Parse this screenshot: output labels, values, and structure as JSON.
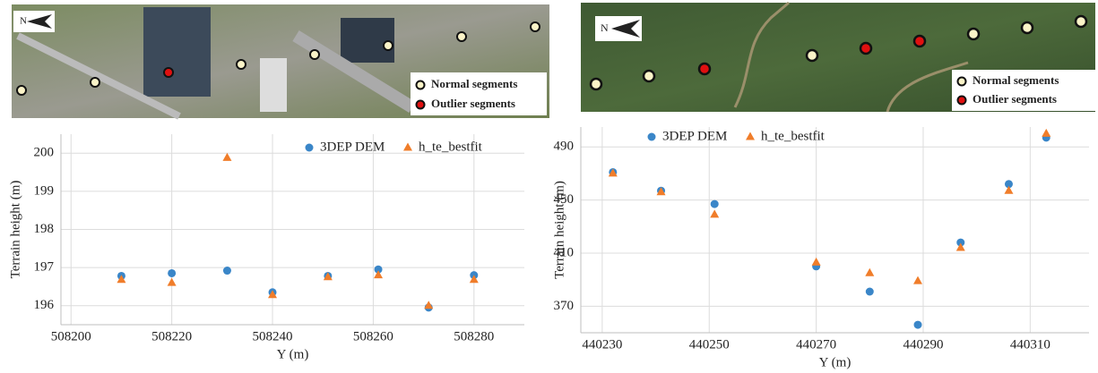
{
  "chart_data": [
    {
      "type": "scatter",
      "x_label": "Y (m)",
      "y_label": "Terrain height (m)",
      "xlim": [
        508198,
        508290
      ],
      "xticks": [
        508200,
        508220,
        508240,
        508260,
        508280
      ],
      "ylim": [
        195.5,
        200.5
      ],
      "yticks": [
        196,
        197,
        198,
        199,
        200
      ],
      "grid": true,
      "north_label": "N",
      "map_legend": [
        "Normal segments",
        "Outlier segments"
      ],
      "series": [
        {
          "name": "3DEP DEM",
          "color": "#3a86c8",
          "marker": "circle",
          "x": [
            508210,
            508220,
            508231,
            508240,
            508251,
            508261,
            508271,
            508280
          ],
          "values": [
            196.78,
            196.85,
            196.92,
            196.35,
            196.78,
            196.95,
            195.95,
            196.8
          ]
        },
        {
          "name": "h_te_bestfit",
          "color": "#f07d2a",
          "marker": "triangle",
          "x": [
            508210,
            508220,
            508231,
            508240,
            508251,
            508261,
            508271,
            508280
          ],
          "values": [
            196.68,
            196.6,
            199.88,
            196.28,
            196.75,
            196.8,
            196.0,
            196.68
          ]
        }
      ]
    },
    {
      "type": "scatter",
      "x_label": "Y (m)",
      "y_label": "Terrain height (m)",
      "xlim": [
        440226,
        440321
      ],
      "xticks": [
        440230,
        440250,
        440270,
        440290,
        440310
      ],
      "ylim": [
        350,
        505
      ],
      "yticks": [
        370,
        410,
        450,
        490
      ],
      "grid": true,
      "north_label": "N",
      "map_legend": [
        "Normal segments",
        "Outlier segments"
      ],
      "series": [
        {
          "name": "3DEP DEM",
          "color": "#3a86c8",
          "marker": "circle",
          "x": [
            440232,
            440241,
            440251,
            440270,
            440280,
            440289,
            440297,
            440306,
            440313
          ],
          "values": [
            471,
            457,
            447,
            400,
            381,
            356,
            418,
            462,
            497
          ]
        },
        {
          "name": "h_te_bestfit",
          "color": "#f07d2a",
          "marker": "triangle",
          "x": [
            440232,
            440241,
            440251,
            440270,
            440280,
            440289,
            440297,
            440306,
            440313
          ],
          "values": [
            470,
            456,
            439,
            403,
            395,
            389,
            414,
            457,
            500
          ]
        }
      ]
    }
  ]
}
